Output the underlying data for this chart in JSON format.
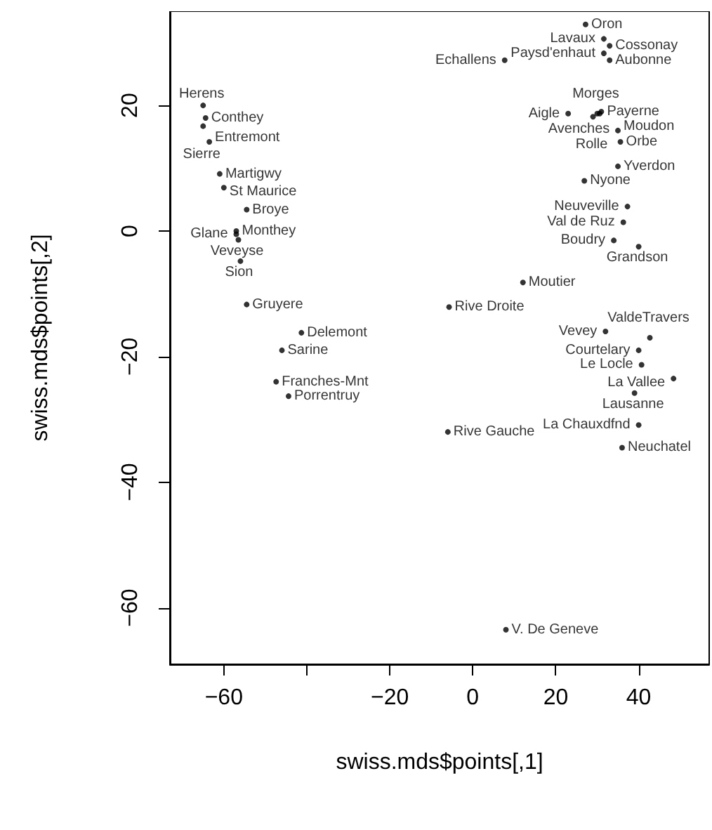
{
  "chart_data": {
    "type": "scatter",
    "xlabel": "swiss.mds$points[,1]",
    "ylabel": "swiss.mds$points[,2]",
    "xlim": [
      -73,
      57
    ],
    "ylim": [
      -69,
      35
    ],
    "xticks": [
      -60,
      {
        "value": -40,
        "label": null
      },
      -20,
      0,
      20,
      40
    ],
    "yticks": [
      -60,
      -40,
      -20,
      0,
      20
    ],
    "grid": false,
    "marker": "circle",
    "x": [
      -65,
      -64.4,
      -65,
      -63.5,
      -61,
      -60,
      -54.5,
      -57,
      -57,
      -56.5,
      -56,
      -54.5,
      -41.3,
      -46,
      -47.4,
      -44.4,
      -5.7,
      12.1,
      -6,
      40,
      36,
      39,
      48.4,
      40.7,
      40,
      32,
      42.7,
      40,
      34,
      36.3,
      37.3,
      26.9,
      35,
      35.6,
      35,
      23,
      30.6,
      30,
      29,
      31,
      33,
      27.2,
      31.6,
      33,
      31.6,
      7.7,
      8
    ],
    "values": [
      20,
      18,
      16.7,
      14.2,
      9.1,
      6.9,
      3.4,
      0,
      -0.5,
      -1.4,
      -4.8,
      -11.7,
      -16.2,
      -19,
      -24,
      -26.3,
      -12.1,
      -8.2,
      -32,
      -30.9,
      -34.5,
      -25.8,
      -23.5,
      -21.3,
      -19,
      -16,
      -17,
      -2.5,
      -1.5,
      1.4,
      3.9,
      8,
      10.3,
      14.2,
      16,
      18.7,
      18.7,
      18.7,
      18.2,
      19,
      27.2,
      32.9,
      30.6,
      29.5,
      28.3,
      27.2,
      -63.5
    ],
    "value_labels": [
      "Herens",
      "Conthey",
      "Sierre",
      "Entremont",
      "Martigwy",
      "St Maurice",
      "Broye",
      "Monthey",
      "Glane",
      "Veveyse",
      "Sion",
      "Gruyere",
      "Delemont",
      "Sarine",
      "Franches-Mnt",
      "Porrentruy",
      "Rive Droite",
      "Moutier",
      "Rive Gauche",
      "La Chauxdfnd",
      "Neuchatel",
      "Lausanne",
      "La Vallee",
      "Le Locle",
      "Courtelary",
      "Vevey",
      "ValdeTravers",
      "Grandson",
      "Boudry",
      "Val de Ruz",
      "Neuveville",
      "Nyone",
      "Yverdon",
      "Orbe",
      "Moudon",
      "Aigle",
      "Avenches",
      "Morges",
      "Rolle",
      "Payerne",
      "Aubonne",
      "Oron",
      "Lavaux",
      "Cossonay",
      "Paysd'enhaut",
      "Echallens",
      "V. De Geneve"
    ]
  }
}
